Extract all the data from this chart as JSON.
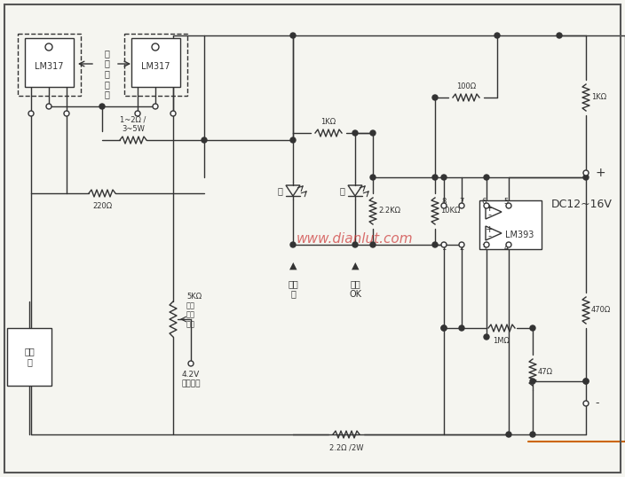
{
  "bg_color": "#f5f5f0",
  "border_color": "#333333",
  "line_color": "#333333",
  "watermark": "www.dianlut.com",
  "watermark_color": "#cc3333",
  "title_text": "DC12~16V",
  "components": {
    "LM317_left_label": "LM317",
    "LM317_right_label": "LM317",
    "LM393_label": "LM393",
    "heat_sink_note": "需\n加\n散\n熱\n片",
    "R1": "1~2Ω /\n3~5W",
    "R2": "220Ω",
    "R3": "5KΩ\n多轉\n精密\n電阻",
    "R4": "1KΩ",
    "R5": "100Ω",
    "R6": "1KΩ",
    "R7": "2.2KΩ",
    "R8": "10KΩ",
    "R9": "1MΩ",
    "R10": "470Ω",
    "R11": "47Ω",
    "R12": "2.2Ω /2W",
    "LED1_label": "紅",
    "LED2_label": "綠",
    "charge_label1": "充電\n中",
    "charge_label2": "充電\nOK",
    "battery_label": "鋰電\n池",
    "voltage_label": "4.2V\n電壓設定",
    "plus_label": "+",
    "minus_label": "-"
  }
}
